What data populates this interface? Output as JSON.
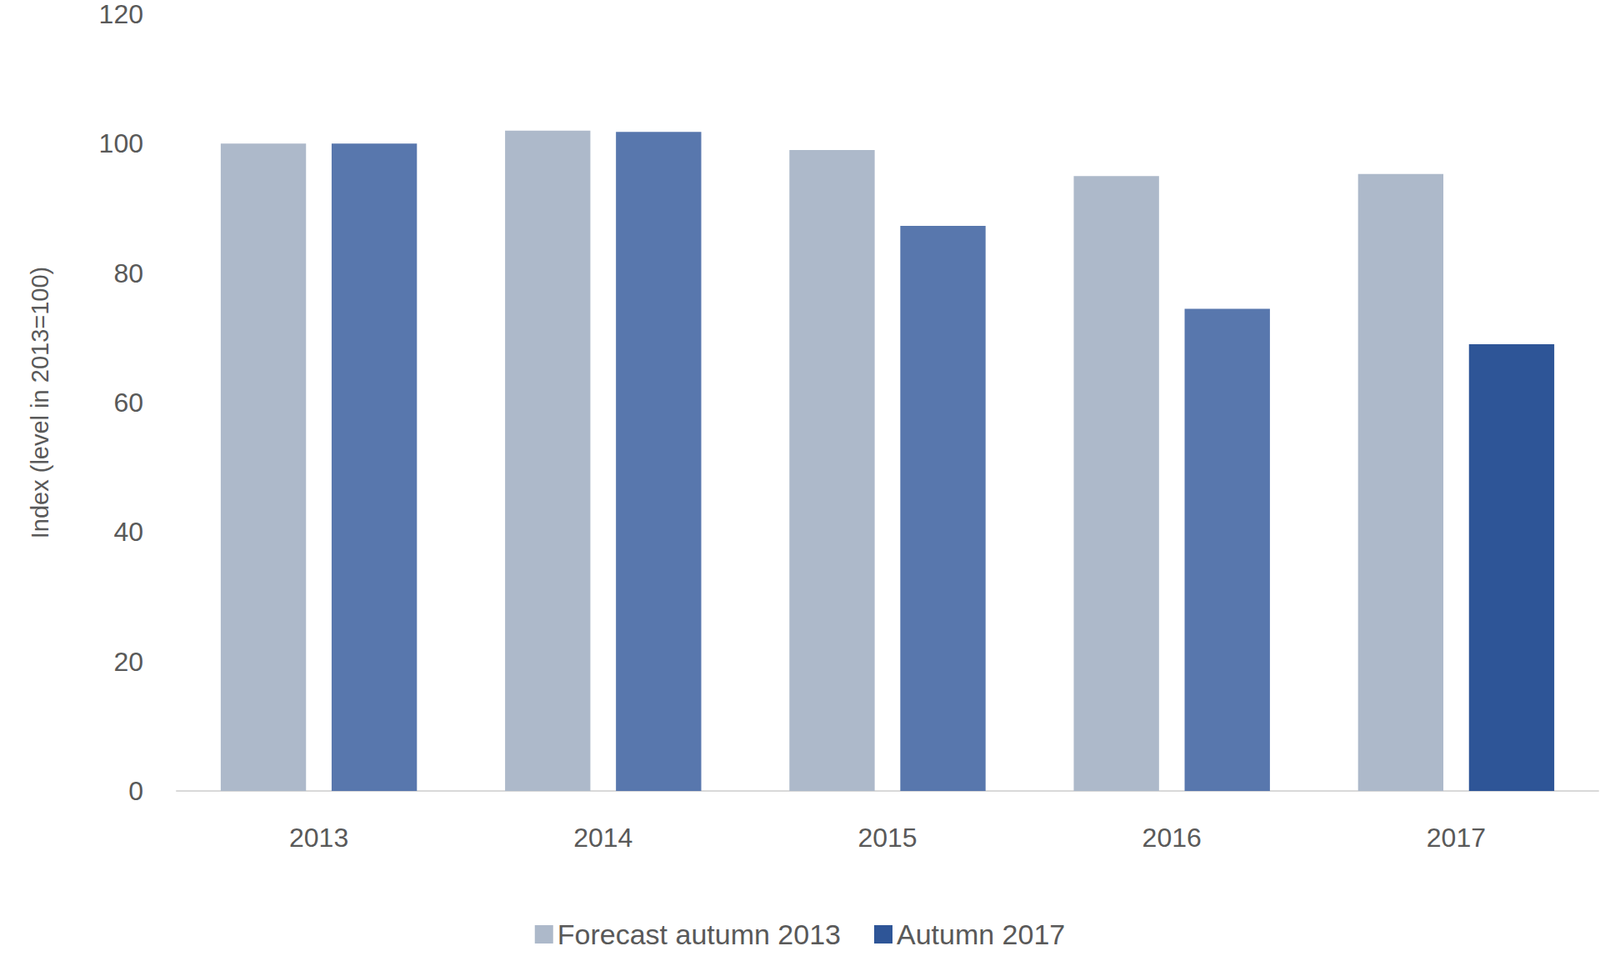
{
  "chart_data": {
    "type": "bar",
    "y_label": "Index (level in 2013=100)",
    "categories": [
      "2013",
      "2014",
      "2015",
      "2016",
      "2017"
    ],
    "series": [
      {
        "name": "Forecast autumn 2013",
        "color": "#adb9ca",
        "values": [
          100,
          102,
          99,
          95,
          95.3
        ]
      },
      {
        "name": "Autumn 2017",
        "color": "#2e5597",
        "colors": [
          "#5877ad",
          "#5877ad",
          "#5877ad",
          "#5877ad",
          "#2e5597"
        ],
        "values": [
          100,
          101.8,
          87.3,
          74.5,
          69
        ]
      }
    ],
    "ylim": [
      0,
      120
    ],
    "yticks": [
      0,
      20,
      40,
      60,
      80,
      100,
      120
    ],
    "grid": false,
    "legend": "bottom"
  }
}
